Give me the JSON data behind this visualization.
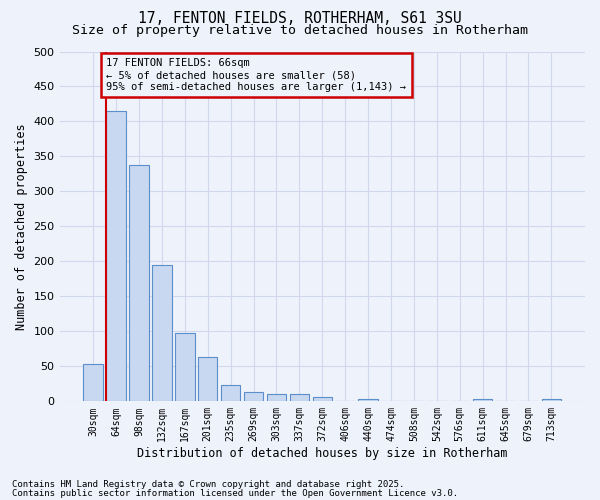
{
  "title_line1": "17, FENTON FIELDS, ROTHERHAM, S61 3SU",
  "title_line2": "Size of property relative to detached houses in Rotherham",
  "xlabel": "Distribution of detached houses by size in Rotherham",
  "ylabel": "Number of detached properties",
  "categories": [
    "30sqm",
    "64sqm",
    "98sqm",
    "132sqm",
    "167sqm",
    "201sqm",
    "235sqm",
    "269sqm",
    "303sqm",
    "337sqm",
    "372sqm",
    "406sqm",
    "440sqm",
    "474sqm",
    "508sqm",
    "542sqm",
    "576sqm",
    "611sqm",
    "645sqm",
    "679sqm",
    "713sqm"
  ],
  "values": [
    53,
    415,
    338,
    195,
    97,
    63,
    23,
    13,
    10,
    10,
    6,
    0,
    4,
    0,
    0,
    0,
    0,
    3,
    0,
    0,
    3
  ],
  "bar_color": "#c8d8f0",
  "bar_edge_color": "#5b8fcc",
  "background_color": "#eef2fb",
  "grid_color": "#d0d8ee",
  "annotation_text": "17 FENTON FIELDS: 66sqm\n← 5% of detached houses are smaller (58)\n95% of semi-detached houses are larger (1,143) →",
  "annotation_box_edgecolor": "#cc0000",
  "annotation_box_facecolor": "#eef2fb",
  "vline_color": "#cc0000",
  "ylim": [
    0,
    500
  ],
  "yticks": [
    0,
    50,
    100,
    150,
    200,
    250,
    300,
    350,
    400,
    450,
    500
  ],
  "footer_line1": "Contains HM Land Registry data © Crown copyright and database right 2025.",
  "footer_line2": "Contains public sector information licensed under the Open Government Licence v3.0.",
  "title_fontsize": 10.5,
  "subtitle_fontsize": 9.5,
  "tick_fontsize": 7,
  "label_fontsize": 8.5,
  "footer_fontsize": 6.5,
  "annotation_fontsize": 7.5
}
